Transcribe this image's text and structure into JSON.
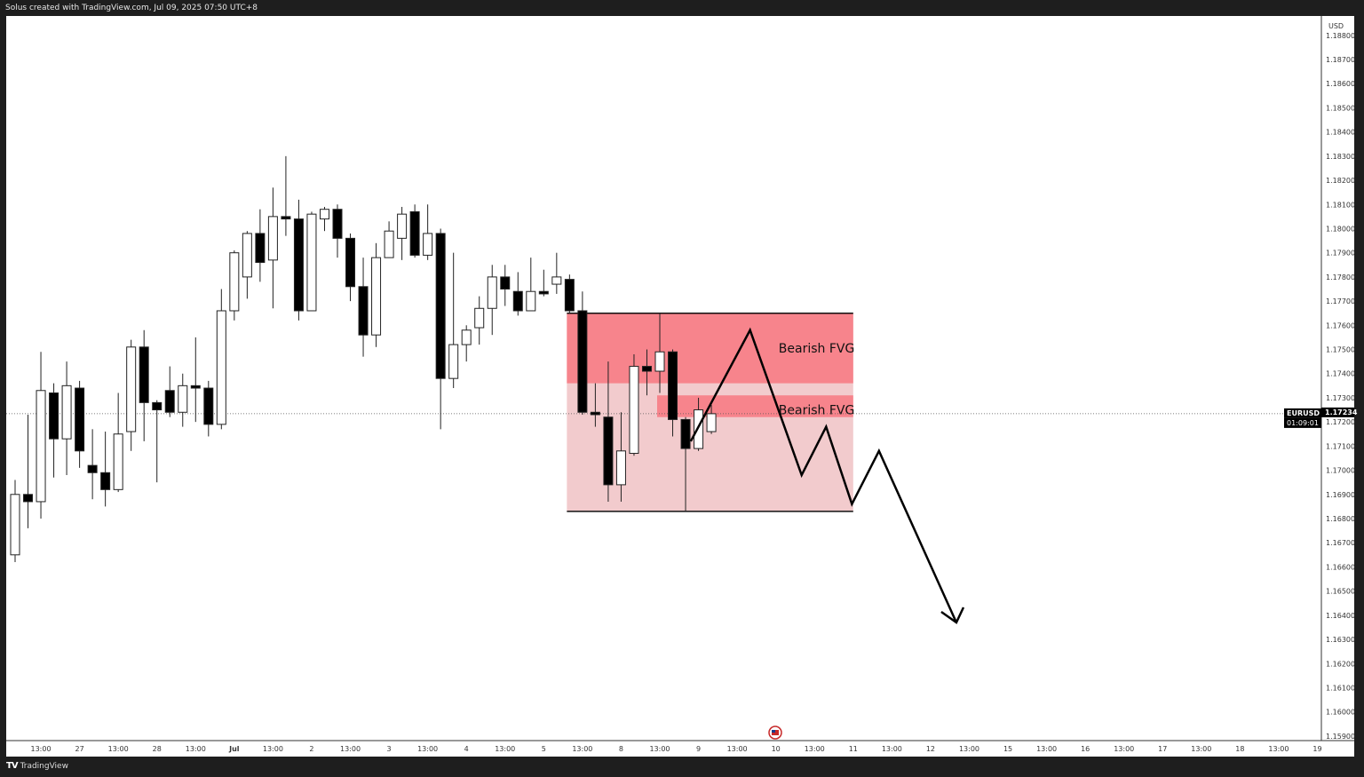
{
  "header": {
    "attribution": "Solus created with TradingView.com, Jul 09, 2025 07:50 UTC+8"
  },
  "footer": {
    "brand": "TradingView",
    "logo_mark": "TV"
  },
  "chart_data": {
    "type": "candlestick",
    "symbol": "EURUSD",
    "currency": "USD",
    "last_price": "1.17234",
    "countdown": "01:09:01",
    "ylim": [
      1.1589,
      1.1885
    ],
    "y_ticks": [
      "1.18800",
      "1.18700",
      "1.18600",
      "1.18500",
      "1.18400",
      "1.18300",
      "1.18200",
      "1.18100",
      "1.18000",
      "1.17900",
      "1.17800",
      "1.17700",
      "1.17600",
      "1.17500",
      "1.17400",
      "1.17300",
      "1.17200",
      "1.17100",
      "1.17000",
      "1.16900",
      "1.16800",
      "1.16700",
      "1.16600",
      "1.16500",
      "1.16400",
      "1.16300",
      "1.16200",
      "1.16100",
      "1.16000",
      "1.15900"
    ],
    "x_tick_labels": [
      "13:00",
      "27",
      "13:00",
      "28",
      "13:00",
      "Jul",
      "13:00",
      "2",
      "13:00",
      "3",
      "13:00",
      "4",
      "13:00",
      "5",
      "13:00",
      "8",
      "13:00",
      "9",
      "13:00",
      "10",
      "13:00",
      "11",
      "13:00",
      "12",
      "13:00",
      "15",
      "13:00",
      "16",
      "13:00",
      "17",
      "13:00",
      "18",
      "13:00",
      "19"
    ],
    "colors": {
      "up": "#ffffff",
      "down": "#000000",
      "fvg_strong": "#f7848c",
      "fvg_light": "#f2cbcd"
    },
    "candles": [
      [
        1.1665,
        1.1696,
        1.1662,
        1.169
      ],
      [
        1.169,
        1.1723,
        1.1676,
        1.1687
      ],
      [
        1.1687,
        1.1749,
        1.168,
        1.1733
      ],
      [
        1.1732,
        1.1736,
        1.1697,
        1.1713
      ],
      [
        1.1713,
        1.1745,
        1.1698,
        1.1735
      ],
      [
        1.1734,
        1.1737,
        1.1701,
        1.1708
      ],
      [
        1.1702,
        1.1717,
        1.1688,
        1.1699
      ],
      [
        1.1699,
        1.1716,
        1.1685,
        1.1692
      ],
      [
        1.1692,
        1.1732,
        1.1691,
        1.1715
      ],
      [
        1.1716,
        1.1754,
        1.1708,
        1.1751
      ],
      [
        1.1751,
        1.1758,
        1.1712,
        1.1728
      ],
      [
        1.1728,
        1.1729,
        1.1695,
        1.1725
      ],
      [
        1.1733,
        1.1743,
        1.1722,
        1.1724
      ],
      [
        1.1724,
        1.174,
        1.1718,
        1.1735
      ],
      [
        1.1735,
        1.1755,
        1.172,
        1.1734
      ],
      [
        1.1734,
        1.1737,
        1.1714,
        1.1719
      ],
      [
        1.1719,
        1.1775,
        1.1717,
        1.1766
      ],
      [
        1.1766,
        1.1791,
        1.1762,
        1.179
      ],
      [
        1.178,
        1.1799,
        1.1771,
        1.1798
      ],
      [
        1.1798,
        1.1808,
        1.1778,
        1.1786
      ],
      [
        1.1787,
        1.1817,
        1.1767,
        1.1805
      ],
      [
        1.1805,
        1.183,
        1.1797,
        1.1804
      ],
      [
        1.1804,
        1.1812,
        1.1762,
        1.1766
      ],
      [
        1.1766,
        1.1807,
        1.1766,
        1.1806
      ],
      [
        1.1804,
        1.1809,
        1.1799,
        1.1808
      ],
      [
        1.1808,
        1.181,
        1.1788,
        1.1796
      ],
      [
        1.1796,
        1.1798,
        1.177,
        1.1776
      ],
      [
        1.1776,
        1.1788,
        1.1747,
        1.1756
      ],
      [
        1.1756,
        1.1794,
        1.1751,
        1.1788
      ],
      [
        1.1788,
        1.1803,
        1.1788,
        1.1799
      ],
      [
        1.1796,
        1.1809,
        1.1787,
        1.1806
      ],
      [
        1.1807,
        1.181,
        1.1788,
        1.1789
      ],
      [
        1.1789,
        1.181,
        1.1787,
        1.1798
      ],
      [
        1.1798,
        1.18,
        1.1717,
        1.1738
      ],
      [
        1.1738,
        1.179,
        1.1734,
        1.1752
      ],
      [
        1.1752,
        1.176,
        1.1745,
        1.1758
      ],
      [
        1.1759,
        1.1772,
        1.1752,
        1.1767
      ],
      [
        1.1767,
        1.1785,
        1.1756,
        1.178
      ],
      [
        1.178,
        1.1785,
        1.1768,
        1.1775
      ],
      [
        1.1774,
        1.1782,
        1.1764,
        1.1766
      ],
      [
        1.1766,
        1.1788,
        1.1766,
        1.1774
      ],
      [
        1.1774,
        1.1783,
        1.1772,
        1.1773
      ],
      [
        1.1777,
        1.179,
        1.1773,
        1.178
      ],
      [
        1.1779,
        1.1781,
        1.1765,
        1.1766
      ],
      [
        1.1766,
        1.1774,
        1.1723,
        1.1724
      ],
      [
        1.1724,
        1.1736,
        1.1718,
        1.1723
      ],
      [
        1.1722,
        1.1745,
        1.1687,
        1.1694
      ],
      [
        1.1694,
        1.1724,
        1.1687,
        1.1708
      ],
      [
        1.1707,
        1.1748,
        1.1706,
        1.1743
      ],
      [
        1.1743,
        1.175,
        1.1731,
        1.1741
      ],
      [
        1.1741,
        1.1765,
        1.1732,
        1.1749
      ],
      [
        1.1749,
        1.175,
        1.1714,
        1.1721
      ],
      [
        1.1721,
        1.1722,
        1.1683,
        1.1709
      ],
      [
        1.1709,
        1.173,
        1.1708,
        1.1725
      ],
      [
        1.1716,
        1.1727,
        1.1715,
        1.17234
      ]
    ],
    "zones": [
      {
        "label": "Bearish FVG",
        "from_bar": 43,
        "to_bar": 65,
        "top": 1.1765,
        "bottom": 1.1736,
        "style": "strong"
      },
      {
        "label": "Bearish FVG",
        "from_bar": 50,
        "to_bar": 65,
        "top": 1.1731,
        "bottom": 1.1722,
        "style": "strong"
      }
    ],
    "range_box": {
      "from_bar": 43,
      "to_bar": 65,
      "top": 1.1765,
      "bottom": 1.1683
    },
    "projection_path": [
      [
        52.4,
        1.1712
      ],
      [
        57.0,
        1.1758
      ],
      [
        61.0,
        1.1698
      ],
      [
        62.9,
        1.1718
      ],
      [
        64.9,
        1.1686
      ],
      [
        67.0,
        1.1708
      ],
      [
        73.0,
        1.1637
      ]
    ]
  }
}
